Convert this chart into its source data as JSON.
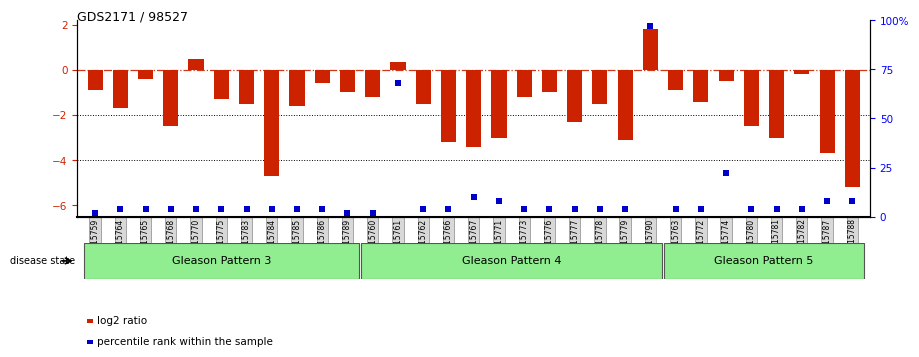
{
  "title": "GDS2171 / 98527",
  "samples": [
    "GSM115759",
    "GSM115764",
    "GSM115765",
    "GSM115768",
    "GSM115770",
    "GSM115775",
    "GSM115783",
    "GSM115784",
    "GSM115785",
    "GSM115786",
    "GSM115789",
    "GSM115760",
    "GSM115761",
    "GSM115762",
    "GSM115766",
    "GSM115767",
    "GSM115771",
    "GSM115773",
    "GSM115776",
    "GSM115777",
    "GSM115778",
    "GSM115779",
    "GSM115790",
    "GSM115763",
    "GSM115772",
    "GSM115774",
    "GSM115780",
    "GSM115781",
    "GSM115782",
    "GSM115787",
    "GSM115788"
  ],
  "log2_ratio": [
    -0.9,
    -1.7,
    -0.4,
    -2.5,
    0.5,
    -1.3,
    -1.5,
    -4.7,
    -1.6,
    -0.6,
    -1.0,
    -1.2,
    0.35,
    -1.5,
    -3.2,
    -3.4,
    -3.0,
    -1.2,
    -1.0,
    -2.3,
    -1.5,
    -3.1,
    1.8,
    -0.9,
    -1.4,
    -0.5,
    -2.5,
    -3.0,
    -0.2,
    -3.7,
    -5.2
  ],
  "percentile_raw": [
    2,
    4,
    4,
    4,
    4,
    4,
    4,
    4,
    4,
    4,
    2,
    2,
    68,
    4,
    4,
    10,
    8,
    4,
    4,
    4,
    4,
    4,
    97,
    4,
    4,
    22,
    4,
    4,
    4,
    8,
    8
  ],
  "groups": [
    {
      "label": "Gleason Pattern 3",
      "start": 0,
      "end": 11
    },
    {
      "label": "Gleason Pattern 4",
      "start": 11,
      "end": 23
    },
    {
      "label": "Gleason Pattern 5",
      "start": 23,
      "end": 31
    }
  ],
  "bar_color": "#CC2200",
  "dot_color": "#0000CC",
  "bg_color": "#FFFFFF",
  "group_fill": "#90EE90",
  "group_border": "#555555",
  "ylim_left": [
    -6.5,
    2.2
  ],
  "ylim_right": [
    0,
    100
  ],
  "left_yticks": [
    2,
    0,
    -2,
    -4,
    -6
  ],
  "right_yticks": [
    100,
    75,
    50,
    25,
    0
  ],
  "right_yticklabels": [
    "100%",
    "75",
    "50",
    "25",
    "0"
  ]
}
